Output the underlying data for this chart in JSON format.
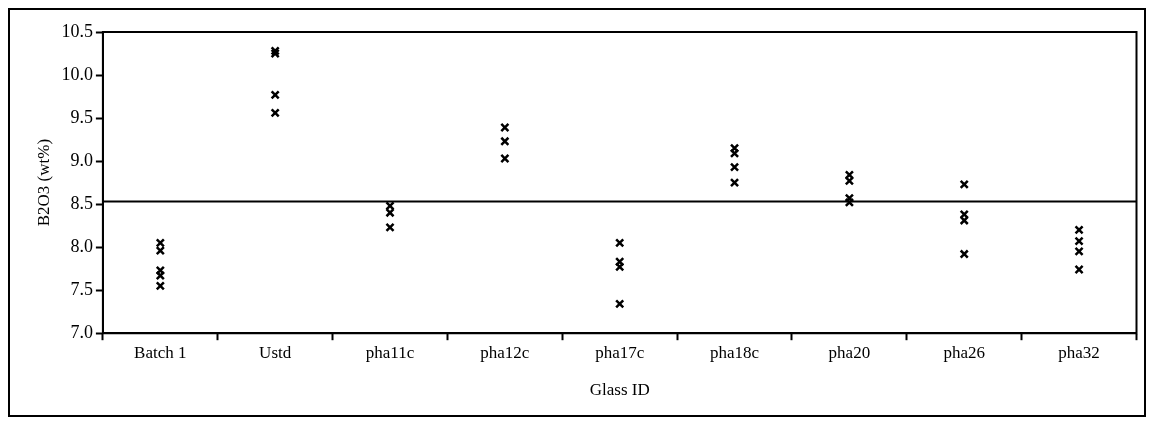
{
  "chart_data": {
    "type": "scatter",
    "categories": [
      "Batch 1",
      "Ustd",
      "pha11c",
      "pha12c",
      "pha17c",
      "pha18c",
      "pha20",
      "pha26",
      "pha32"
    ],
    "series": [
      {
        "color": "#000000",
        "x": [
          "Batch 1",
          "Batch 1",
          "Batch 1",
          "Batch 1",
          "Batch 1",
          "Ustd",
          "Ustd",
          "Ustd",
          "Ustd",
          "pha11c",
          "pha11c",
          "pha11c",
          "pha12c",
          "pha12c",
          "pha12c",
          "pha17c",
          "pha17c",
          "pha17c",
          "pha17c",
          "pha18c",
          "pha18c",
          "pha18c",
          "pha18c",
          "pha20",
          "pha20",
          "pha20",
          "pha20",
          "pha26",
          "pha26",
          "pha26",
          "pha26",
          "pha32",
          "pha32",
          "pha32",
          "pha32"
        ],
        "values": [
          8.05,
          7.96,
          7.73,
          7.67,
          7.55,
          10.28,
          10.25,
          9.77,
          9.56,
          8.48,
          8.4,
          8.23,
          9.39,
          9.23,
          9.03,
          8.05,
          7.83,
          7.77,
          7.34,
          9.15,
          9.09,
          8.93,
          8.75,
          8.84,
          8.77,
          8.57,
          8.52,
          8.73,
          8.38,
          8.31,
          7.92,
          8.2,
          8.07,
          7.95,
          7.74
        ]
      }
    ],
    "ylabel": "B2O3 (wt%)",
    "xlabel": "Glass ID",
    "ylim": [
      7.0,
      10.5
    ],
    "yticks": [
      {
        "value": 7,
        "label": "7.0"
      },
      7.5,
      {
        "value": 8,
        "label": "8.0"
      },
      8.5,
      {
        "value": 9,
        "label": "9.0"
      },
      9.5,
      {
        "value": 10,
        "label": "10.0"
      },
      10.5
    ],
    "ref_lines": [
      {
        "axis": "y",
        "value": 8.53,
        "color": "#000000"
      }
    ],
    "marker": "cross",
    "grid": false,
    "legend": false
  }
}
